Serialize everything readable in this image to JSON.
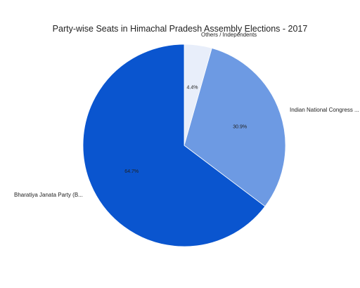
{
  "chart_data": {
    "type": "pie",
    "title": "Party-wise Seats in Himachal Pradesh Assembly Elections - 2017",
    "categories": [
      "Others / Independents",
      "Indian National Congress ...",
      "Bharatiya Janata Party (B..."
    ],
    "values": [
      4.4,
      30.9,
      64.7
    ],
    "value_labels": [
      "4.4%",
      "30.9%",
      "64.7%"
    ],
    "colors": [
      "#e8eefa",
      "#6d9ae3",
      "#0a55cf"
    ],
    "legend": "none",
    "start": "top",
    "direction": "clockwise"
  }
}
